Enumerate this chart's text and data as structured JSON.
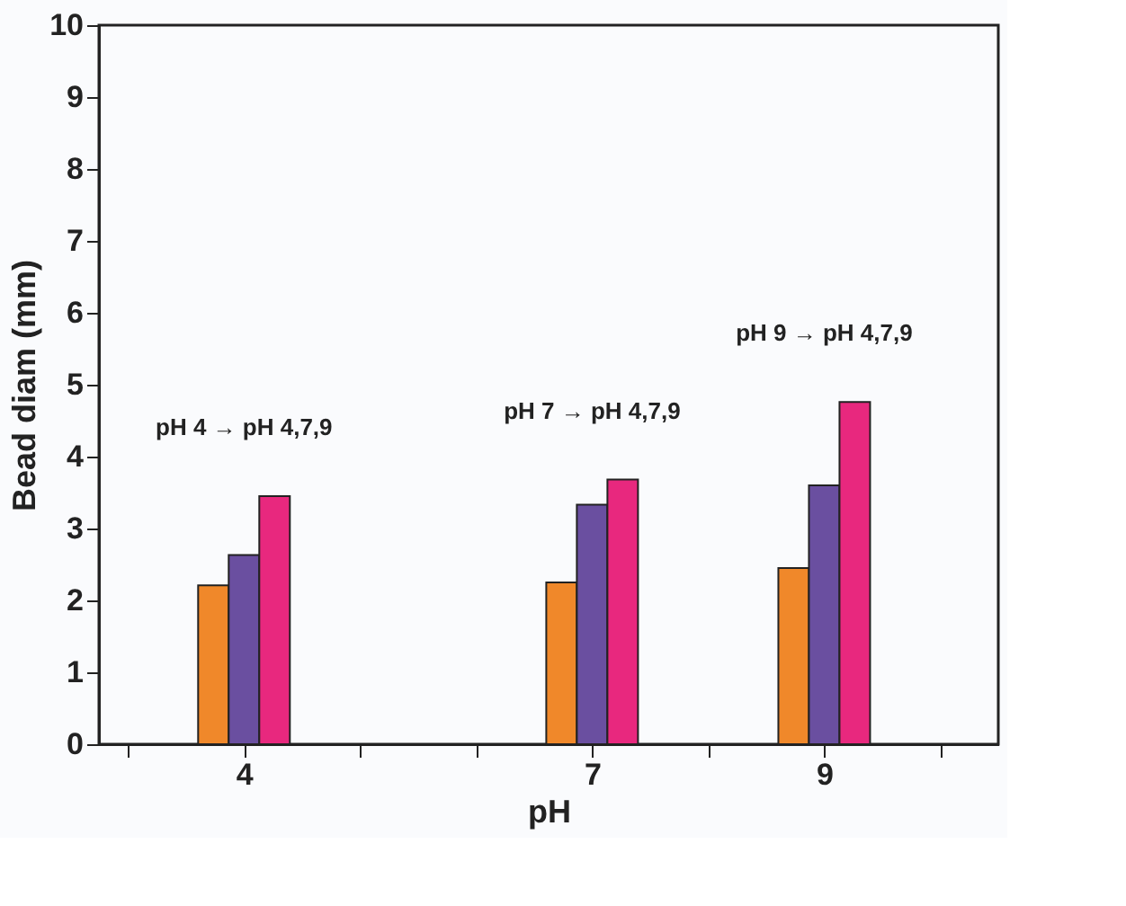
{
  "chart_data": {
    "type": "bar",
    "xlabel": "pH",
    "ylabel": "Bead diam (mm)",
    "x": [
      4,
      7,
      9
    ],
    "series": [
      {
        "color": "#f0882a",
        "values": [
          2.21,
          2.25,
          2.45
        ]
      },
      {
        "color": "#6a4fa0",
        "values": [
          2.63,
          3.33,
          3.6
        ]
      },
      {
        "color": "#e8287e",
        "values": [
          3.45,
          3.68,
          4.76
        ]
      }
    ],
    "xlim": [
      2.75,
      10.5
    ],
    "xticks": [
      {
        "value": 3,
        "label": null
      },
      4,
      {
        "value": 5,
        "label": null
      },
      {
        "value": 6,
        "label": null
      },
      7,
      {
        "value": 8,
        "label": null
      },
      9,
      {
        "value": 10,
        "label": null
      }
    ],
    "ylim": [
      0,
      10
    ],
    "yticks": [
      0,
      1,
      2,
      3,
      4,
      5,
      6,
      7,
      8,
      9,
      10
    ],
    "annotations": [
      "pH 4 → pH 4,7,9",
      "pH 7 → pH 4,7,9",
      "pH 9 → pH 4,7,9"
    ],
    "grid": false
  }
}
